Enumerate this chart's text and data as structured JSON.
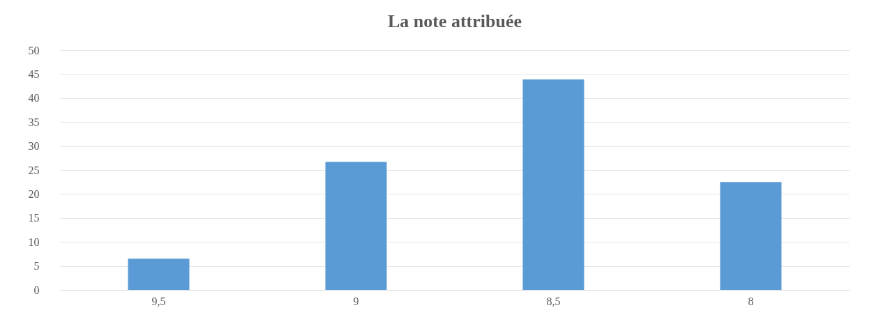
{
  "chart_data": {
    "type": "bar",
    "title": "La note attribuée",
    "categories": [
      "9,5",
      "9",
      "8,5",
      "8"
    ],
    "values": [
      6.5,
      26.7,
      43.9,
      22.5
    ],
    "color": "#5b9bd5",
    "ylim": [
      0,
      50
    ],
    "yticks": [
      0,
      5,
      10,
      15,
      20,
      25,
      30,
      35,
      40,
      45,
      50
    ],
    "grid": "y",
    "legend": false
  }
}
